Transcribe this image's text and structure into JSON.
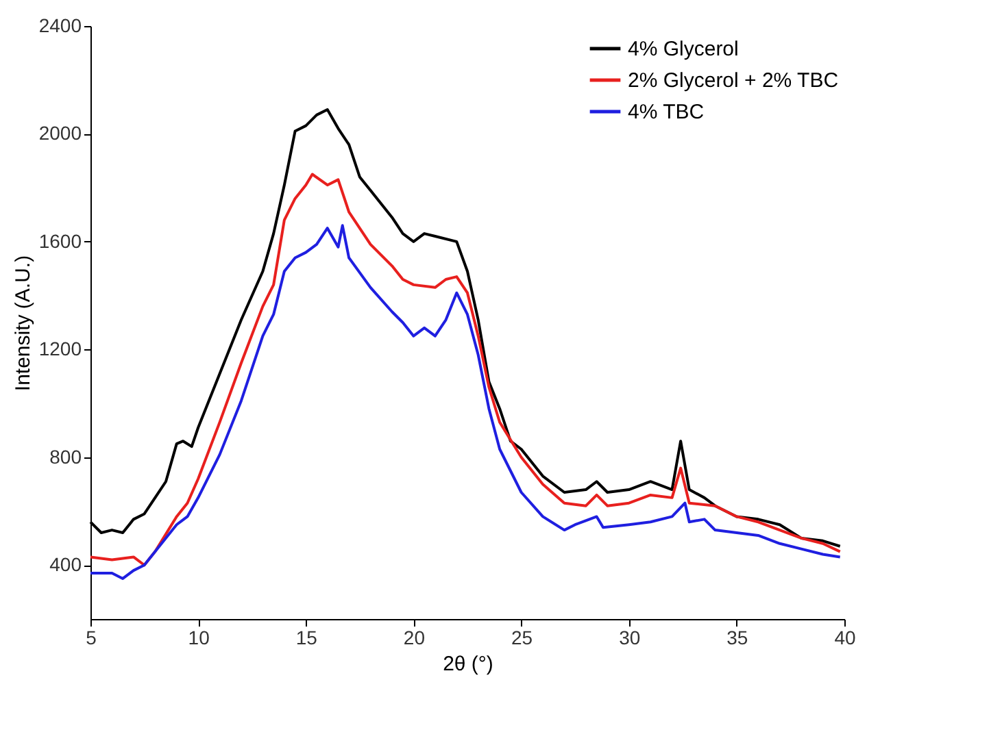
{
  "chart_data": {
    "type": "line",
    "xlabel": "2θ (°)",
    "ylabel": "Intensity (A.U.)",
    "xlim": [
      5,
      40
    ],
    "ylim": [
      200,
      2400
    ],
    "xticks": [
      5,
      10,
      15,
      20,
      25,
      30,
      35,
      40
    ],
    "yticks": [
      400,
      800,
      1200,
      1600,
      2000,
      2400
    ],
    "grid": false,
    "legend": "top right",
    "marker": "none",
    "line_style": "solid",
    "series": [
      {
        "name": "4% Glycerol",
        "color": "#000000",
        "x": [
          5,
          5.5,
          6,
          6.5,
          7,
          7.5,
          8,
          8.5,
          9,
          9.3,
          9.7,
          10,
          11,
          12,
          13,
          13.5,
          14,
          14.5,
          15,
          15.5,
          16,
          16.5,
          17,
          17.5,
          18,
          18.5,
          19,
          19.5,
          20,
          20.5,
          21,
          22,
          22.5,
          23,
          23.5,
          24,
          24.5,
          25,
          26,
          27,
          28,
          28.5,
          29,
          30,
          31,
          32,
          32.4,
          32.8,
          33.5,
          34,
          35,
          36,
          37,
          38,
          39,
          39.8
        ],
        "values": [
          560,
          520,
          530,
          520,
          570,
          590,
          650,
          710,
          850,
          860,
          840,
          910,
          1110,
          1310,
          1490,
          1630,
          1810,
          2010,
          2030,
          2070,
          2090,
          2020,
          1960,
          1840,
          1790,
          1740,
          1690,
          1630,
          1600,
          1630,
          1620,
          1600,
          1490,
          1310,
          1080,
          980,
          860,
          830,
          730,
          670,
          680,
          710,
          670,
          680,
          710,
          680,
          860,
          680,
          650,
          620,
          580,
          570,
          550,
          500,
          490,
          470
        ]
      },
      {
        "name": "2% Glycerol + 2% TBC",
        "color": "#e8201e",
        "x": [
          5,
          6,
          7,
          7.5,
          8,
          9,
          9.5,
          10,
          11,
          12,
          13,
          13.5,
          14,
          14.5,
          15,
          15.3,
          16,
          16.5,
          17,
          18,
          19,
          19.5,
          20,
          21,
          21.5,
          22,
          22.5,
          23,
          23.5,
          24,
          25,
          26,
          27,
          28,
          28.5,
          29,
          30,
          31,
          32,
          32.4,
          32.8,
          34,
          35,
          36,
          37,
          38,
          39,
          39.8
        ],
        "values": [
          430,
          420,
          430,
          400,
          450,
          580,
          630,
          720,
          930,
          1150,
          1360,
          1440,
          1680,
          1760,
          1810,
          1850,
          1810,
          1830,
          1710,
          1590,
          1510,
          1460,
          1440,
          1430,
          1460,
          1470,
          1410,
          1250,
          1060,
          930,
          800,
          700,
          630,
          620,
          660,
          620,
          630,
          660,
          650,
          760,
          630,
          620,
          580,
          560,
          530,
          500,
          480,
          450
        ]
      },
      {
        "name": "4% TBC",
        "color": "#1f1fe0",
        "x": [
          5,
          6,
          6.5,
          7,
          7.5,
          8,
          9,
          9.5,
          10,
          11,
          12,
          13,
          13.5,
          14,
          14.5,
          15,
          15.5,
          16,
          16.5,
          16.7,
          17,
          18,
          19,
          19.5,
          20,
          20.5,
          21,
          21.5,
          22,
          22.5,
          23,
          23.5,
          24,
          25,
          26,
          27,
          27.5,
          28.5,
          28.8,
          30,
          31,
          32,
          32.6,
          32.8,
          33.5,
          34,
          35,
          36,
          37,
          38,
          39,
          39.8
        ],
        "values": [
          370,
          370,
          350,
          380,
          400,
          450,
          550,
          580,
          650,
          810,
          1010,
          1250,
          1330,
          1490,
          1540,
          1560,
          1590,
          1650,
          1580,
          1660,
          1540,
          1430,
          1340,
          1300,
          1250,
          1280,
          1250,
          1310,
          1410,
          1330,
          1180,
          980,
          830,
          670,
          580,
          530,
          550,
          580,
          540,
          550,
          560,
          580,
          630,
          560,
          570,
          530,
          520,
          510,
          480,
          460,
          440,
          430
        ]
      }
    ]
  }
}
